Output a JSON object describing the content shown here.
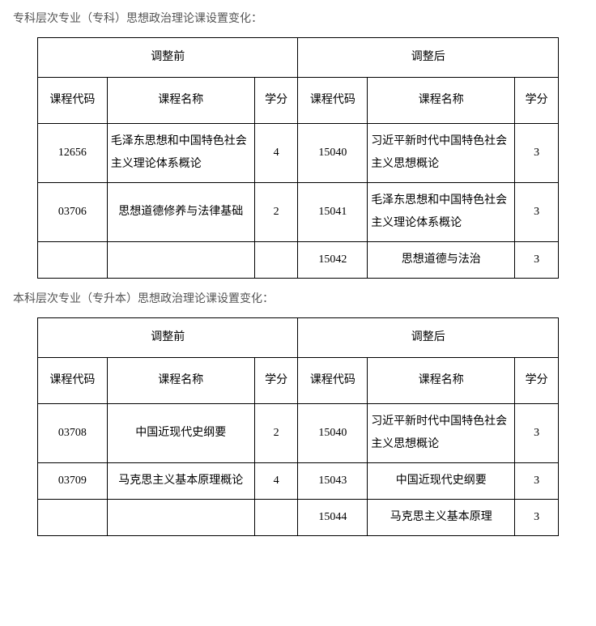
{
  "sections": [
    {
      "title": "专科层次专业（专科）思想政治理论课设置变化：",
      "group_headers": [
        "调整前",
        "调整后"
      ],
      "col_headers": [
        "课程代码",
        "课程名称",
        "学分",
        "课程代码",
        "课程名称",
        "学分"
      ],
      "rows": [
        {
          "code_before": "12656",
          "name_before": "毛泽东思想和中国特色社会主义理论体系概论",
          "credit_before": "4",
          "code_after": "15040",
          "name_after": "习近平新时代中国特色社会主义思想概论",
          "credit_after": "3"
        },
        {
          "code_before": "03706",
          "name_before": "思想道德修养与法律基础",
          "credit_before": "2",
          "code_after": "15041",
          "name_after": "毛泽东思想和中国特色社会主义理论体系概论",
          "credit_after": "3"
        },
        {
          "code_before": "",
          "name_before": "",
          "credit_before": "",
          "code_after": "15042",
          "name_after": "思想道德与法治",
          "credit_after": "3"
        }
      ]
    },
    {
      "title": "本科层次专业（专升本）思想政治理论课设置变化：",
      "group_headers": [
        "调整前",
        "调整后"
      ],
      "col_headers": [
        "课程代码",
        "课程名称",
        "学分",
        "课程代码",
        "课程名称",
        "学分"
      ],
      "rows": [
        {
          "code_before": "03708",
          "name_before": "中国近现代史纲要",
          "credit_before": "2",
          "code_after": "15040",
          "name_after": "习近平新时代中国特色社会主义思想概论",
          "credit_after": "3"
        },
        {
          "code_before": "03709",
          "name_before": "马克思主义基本原理概论",
          "credit_before": "4",
          "code_after": "15043",
          "name_after": "中国近现代史纲要",
          "credit_after": "3"
        },
        {
          "code_before": "",
          "name_before": "",
          "credit_before": "",
          "code_after": "15044",
          "name_after": "马克思主义基本原理",
          "credit_after": "3"
        }
      ]
    }
  ]
}
